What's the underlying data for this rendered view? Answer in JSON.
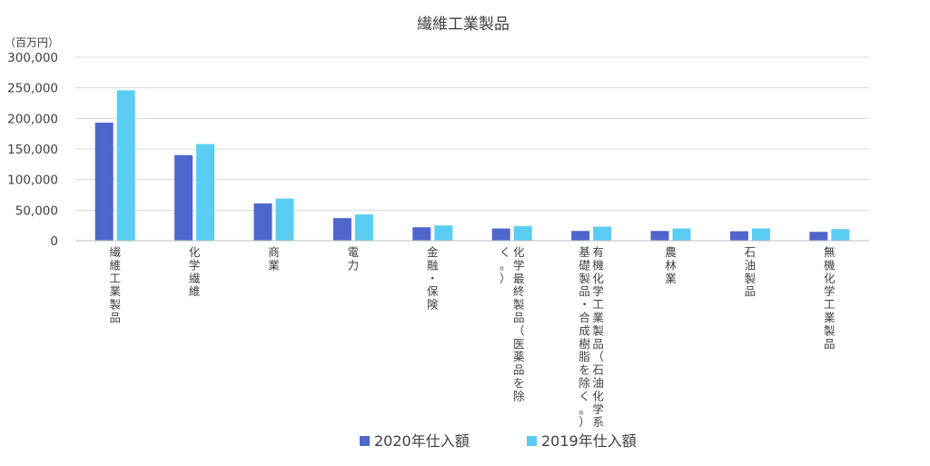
{
  "chart_data": {
    "type": "bar",
    "title": "繊維工業製品",
    "unit_label": "（百万円）",
    "ylim": [
      0,
      300000
    ],
    "yticks": [
      0,
      50000,
      100000,
      150000,
      200000,
      250000,
      300000
    ],
    "ytick_labels": [
      "0",
      "50,000",
      "100,000",
      "150,000",
      "200,000",
      "250,000",
      "300,000"
    ],
    "grid": true,
    "legend_position": "bottom",
    "categories": [
      {
        "lines": [
          "繊維工業製品"
        ]
      },
      {
        "lines": [
          "化学繊維"
        ]
      },
      {
        "lines": [
          "商業"
        ]
      },
      {
        "lines": [
          "電力"
        ]
      },
      {
        "lines": [
          "金融・保険"
        ]
      },
      {
        "lines": [
          "化学最終製品（医薬品を除",
          "く。）"
        ]
      },
      {
        "lines": [
          "有機化学工業製品（石油化学系",
          "基礎製品・合成樹脂を除く。）"
        ]
      },
      {
        "lines": [
          "農林業"
        ]
      },
      {
        "lines": [
          "石油製品"
        ]
      },
      {
        "lines": [
          "無機化学工業製品"
        ]
      }
    ],
    "series": [
      {
        "name": "2020年仕入額",
        "color": "#4f67cd",
        "values": [
          193000,
          140000,
          61000,
          37000,
          22000,
          20000,
          16000,
          16000,
          15500,
          14500
        ]
      },
      {
        "name": "2019年仕入額",
        "color": "#5bcdf2",
        "values": [
          246000,
          158000,
          69000,
          43000,
          25000,
          24000,
          23000,
          20000,
          20000,
          19000
        ]
      }
    ]
  }
}
